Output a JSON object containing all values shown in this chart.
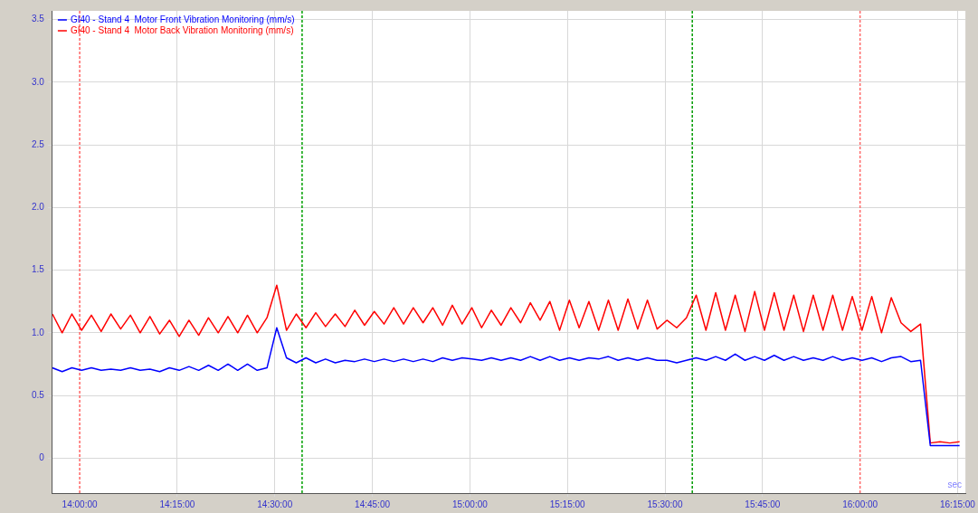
{
  "chart_data": {
    "type": "line",
    "x": [
      13.93,
      13.955,
      13.98,
      14.005,
      14.03,
      14.055,
      14.08,
      14.105,
      14.13,
      14.155,
      14.18,
      14.205,
      14.23,
      14.255,
      14.28,
      14.305,
      14.33,
      14.355,
      14.38,
      14.405,
      14.43,
      14.455,
      14.48,
      14.505,
      14.53,
      14.555,
      14.58,
      14.605,
      14.63,
      14.655,
      14.68,
      14.705,
      14.73,
      14.755,
      14.78,
      14.805,
      14.83,
      14.855,
      14.88,
      14.905,
      14.93,
      14.955,
      14.98,
      15.005,
      15.03,
      15.055,
      15.08,
      15.105,
      15.13,
      15.155,
      15.18,
      15.205,
      15.23,
      15.255,
      15.28,
      15.305,
      15.33,
      15.355,
      15.38,
      15.405,
      15.43,
      15.455,
      15.48,
      15.505,
      15.53,
      15.555,
      15.58,
      15.605,
      15.63,
      15.655,
      15.68,
      15.705,
      15.73,
      15.755,
      15.78,
      15.805,
      15.83,
      15.855,
      15.88,
      15.905,
      15.93,
      15.955,
      15.98,
      16.005,
      16.03,
      16.055,
      16.08,
      16.105,
      16.13,
      16.155,
      16.18,
      16.205,
      16.23,
      16.255
    ],
    "series": [
      {
        "name": "GI40 - Stand 4  Motor Front Vibration Monitoring (mm/s)",
        "color": "#0000ff",
        "values": [
          0.72,
          0.69,
          0.72,
          0.7,
          0.72,
          0.7,
          0.71,
          0.7,
          0.72,
          0.7,
          0.71,
          0.69,
          0.72,
          0.7,
          0.73,
          0.7,
          0.74,
          0.7,
          0.75,
          0.7,
          0.75,
          0.7,
          0.72,
          1.04,
          0.8,
          0.76,
          0.8,
          0.76,
          0.79,
          0.76,
          0.78,
          0.77,
          0.79,
          0.77,
          0.79,
          0.77,
          0.79,
          0.77,
          0.79,
          0.77,
          0.8,
          0.78,
          0.8,
          0.79,
          0.78,
          0.8,
          0.78,
          0.8,
          0.78,
          0.81,
          0.78,
          0.81,
          0.78,
          0.8,
          0.78,
          0.8,
          0.79,
          0.81,
          0.78,
          0.8,
          0.78,
          0.8,
          0.78,
          0.78,
          0.76,
          0.78,
          0.8,
          0.78,
          0.81,
          0.78,
          0.83,
          0.78,
          0.81,
          0.78,
          0.82,
          0.78,
          0.81,
          0.78,
          0.8,
          0.78,
          0.81,
          0.78,
          0.8,
          0.78,
          0.8,
          0.77,
          0.8,
          0.81,
          0.77,
          0.78,
          0.1,
          0.1,
          0.1,
          0.1
        ]
      },
      {
        "name": "GI40 - Stand 4  Motor Back Vibration Monitoring (mm/s)",
        "color": "#ff0000",
        "values": [
          1.15,
          1.0,
          1.15,
          1.02,
          1.14,
          1.01,
          1.15,
          1.03,
          1.14,
          1.0,
          1.13,
          0.99,
          1.1,
          0.97,
          1.1,
          0.98,
          1.12,
          1.0,
          1.13,
          1.0,
          1.14,
          1.0,
          1.12,
          1.38,
          1.02,
          1.15,
          1.04,
          1.16,
          1.05,
          1.15,
          1.05,
          1.18,
          1.06,
          1.17,
          1.07,
          1.2,
          1.07,
          1.2,
          1.08,
          1.2,
          1.06,
          1.22,
          1.07,
          1.2,
          1.04,
          1.18,
          1.06,
          1.2,
          1.08,
          1.24,
          1.1,
          1.25,
          1.02,
          1.26,
          1.04,
          1.25,
          1.02,
          1.26,
          1.02,
          1.27,
          1.03,
          1.26,
          1.03,
          1.1,
          1.04,
          1.12,
          1.3,
          1.02,
          1.32,
          1.02,
          1.3,
          1.01,
          1.33,
          1.02,
          1.32,
          1.02,
          1.3,
          1.01,
          1.3,
          1.02,
          1.3,
          1.02,
          1.29,
          1.02,
          1.29,
          1.0,
          1.28,
          1.08,
          1.01,
          1.07,
          0.12,
          0.13,
          0.12,
          0.13
        ]
      }
    ],
    "xlim": [
      13.93,
      16.27
    ],
    "xticks": [
      {
        "value": 14,
        "label": "14:00:00"
      },
      {
        "value": 14.25,
        "label": "14:15:00"
      },
      {
        "value": 14.5,
        "label": "14:30:00"
      },
      {
        "value": 14.75,
        "label": "14:45:00"
      },
      {
        "value": 15,
        "label": "15:00:00"
      },
      {
        "value": 15.25,
        "label": "15:15:00"
      },
      {
        "value": 15.5,
        "label": "15:30:00"
      },
      {
        "value": 15.75,
        "label": "15:45:00"
      },
      {
        "value": 16,
        "label": "16:00:00"
      },
      {
        "value": 16.25,
        "label": "16:15:00"
      }
    ],
    "ylim": [
      -0.28,
      3.57
    ],
    "yticks": [
      0,
      {
        "value": 0.5,
        "label": "0.5"
      },
      {
        "value": 1,
        "label": "1.0"
      },
      {
        "value": 1.5,
        "label": "1.5"
      },
      {
        "value": 2,
        "label": "2.0"
      },
      {
        "value": 2.5,
        "label": "2.5"
      },
      {
        "value": 3,
        "label": "3.0"
      },
      {
        "value": 3.5,
        "label": "3.5"
      }
    ],
    "ref_lines": [
      {
        "axis": "x",
        "value": 14,
        "color": "#ff6666",
        "line_style": "dotted"
      },
      {
        "axis": "x",
        "value": 14.57,
        "color": "#00a000",
        "line_style": "dotted"
      },
      {
        "axis": "x",
        "value": 15.57,
        "color": "#009a00",
        "line_style": "dotted"
      },
      {
        "axis": "x",
        "value": 16,
        "color": "#ff6a6a",
        "line_style": "dotted"
      }
    ],
    "annotations": [
      "sec"
    ],
    "grid": true,
    "legend": "top left",
    "marker": "none",
    "line_style": "solid"
  }
}
